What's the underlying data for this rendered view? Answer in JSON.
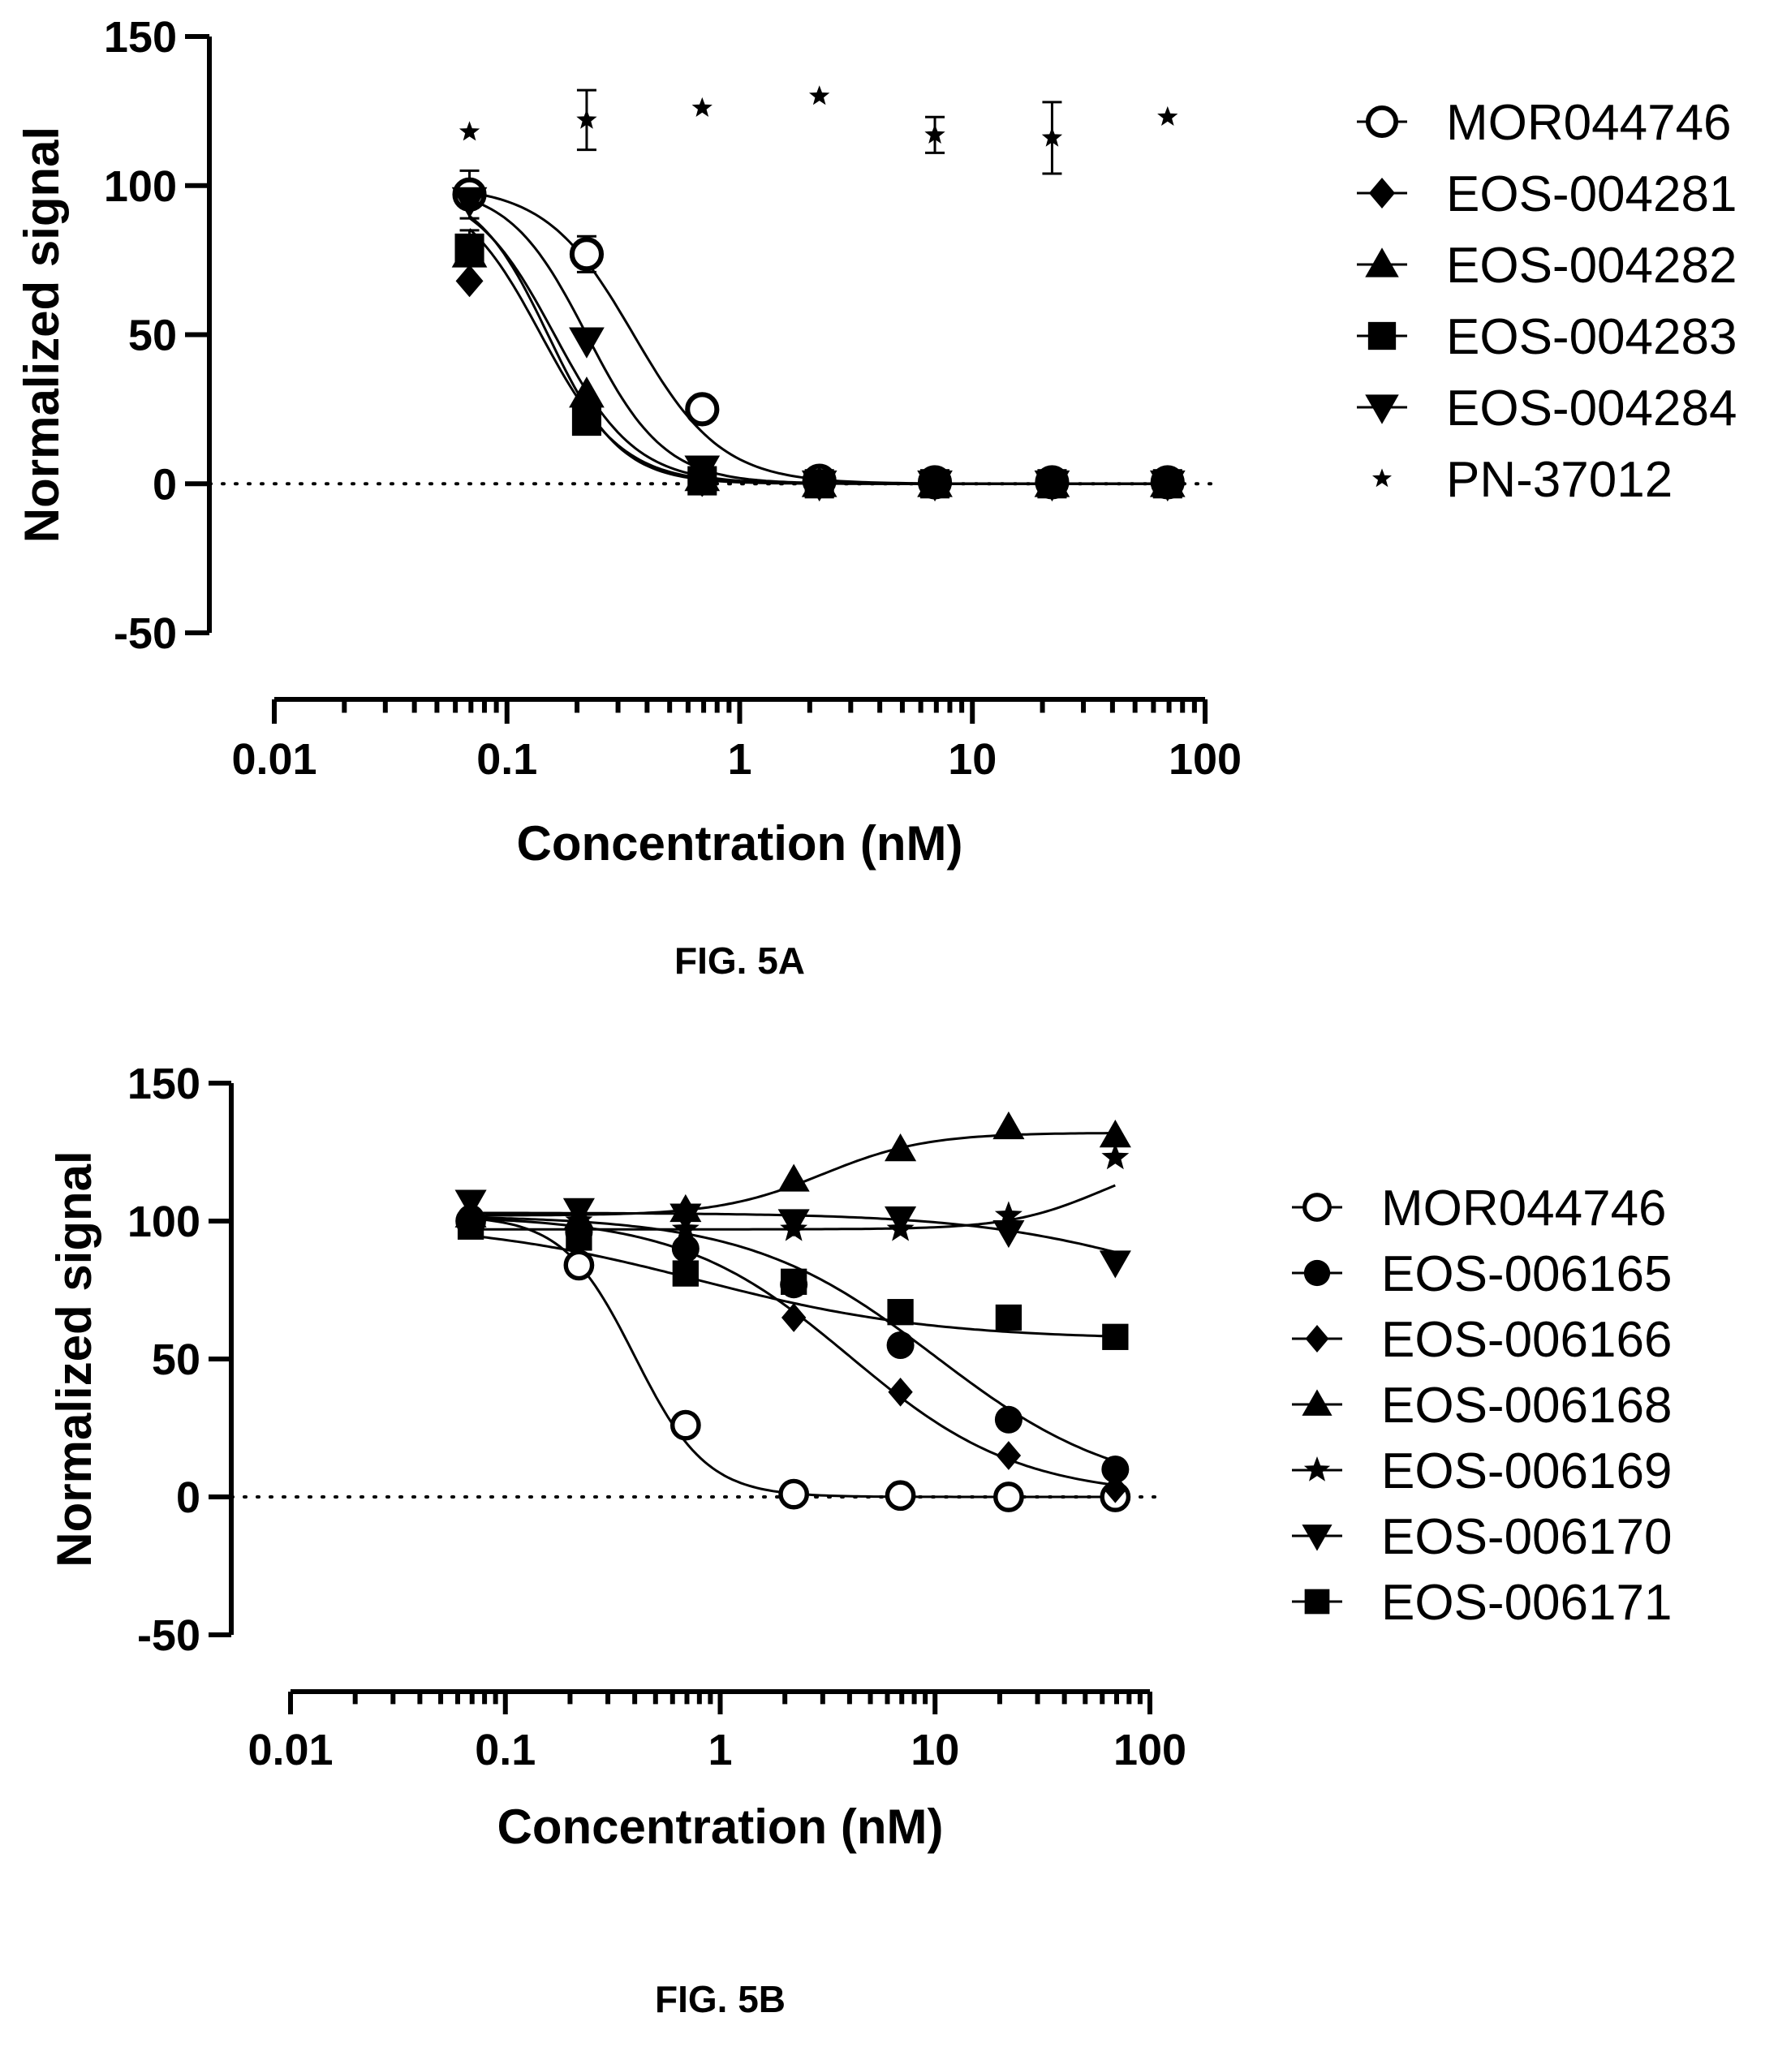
{
  "chart_data": [
    {
      "type": "scatter",
      "caption": "FIG. 5A",
      "xlabel": "Concentration (nM)",
      "ylabel": "Normalized signal",
      "xscale": "log",
      "xlim": [
        0.01,
        100
      ],
      "ylim": [
        -50,
        150
      ],
      "xticks": [
        "0.01",
        "0.1",
        "1",
        "10",
        "100"
      ],
      "yticks": [
        "150",
        "100",
        "50",
        "0",
        "-50"
      ],
      "baseline": 0,
      "grid": false,
      "legend_position": "right",
      "x": [
        0.069,
        0.22,
        0.69,
        2.2,
        6.9,
        22,
        69
      ],
      "series": [
        {
          "name": "MOR044746",
          "marker": "circle-open",
          "values": [
            97,
            77,
            25,
            1,
            0.5,
            0.5,
            0.5
          ],
          "fit": {
            "top": 100,
            "bottom": 0,
            "ic50": 0.35,
            "hill": 2.3
          },
          "error": [
            8,
            6,
            0,
            0,
            0,
            0,
            0
          ]
        },
        {
          "name": "EOS-004281",
          "marker": "diamond",
          "values": [
            68,
            22,
            1,
            0,
            0,
            0,
            0
          ],
          "fit": {
            "top": 100,
            "bottom": 0,
            "ic50": 0.14,
            "hill": 2.5
          },
          "error": [
            0,
            0,
            0,
            0,
            0,
            0,
            0
          ]
        },
        {
          "name": "EOS-004282",
          "marker": "triangle-up",
          "values": [
            77,
            30,
            2,
            0,
            0,
            0,
            0
          ],
          "fit": {
            "top": 100,
            "bottom": 0,
            "ic50": 0.16,
            "hill": 2.5
          },
          "error": [
            0,
            0,
            0,
            0,
            0,
            0,
            0
          ]
        },
        {
          "name": "EOS-004283",
          "marker": "square",
          "values": [
            79,
            21,
            1,
            0,
            0,
            0,
            0
          ],
          "fit": {
            "top": 100,
            "bottom": 0,
            "ic50": 0.15,
            "hill": 2.8
          },
          "error": [
            6,
            0,
            0,
            0,
            0,
            0,
            0
          ]
        },
        {
          "name": "EOS-004284",
          "marker": "triangle-down",
          "values": [
            95,
            48,
            5,
            0,
            0,
            0,
            0
          ],
          "fit": {
            "top": 100,
            "bottom": 0,
            "ic50": 0.22,
            "hill": 2.6
          },
          "error": [
            0,
            0,
            0,
            0,
            0,
            0,
            0
          ]
        },
        {
          "name": "PN-37012",
          "marker": "star-small",
          "values": [
            118,
            122,
            126,
            130,
            117,
            116,
            123
          ],
          "fit": null,
          "error": [
            0,
            10,
            0,
            0,
            6,
            12,
            0
          ]
        }
      ]
    },
    {
      "type": "scatter",
      "caption": "FIG. 5B",
      "xlabel": "Concentration (nM)",
      "ylabel": "Normalized signal",
      "xscale": "log",
      "xlim": [
        0.01,
        100
      ],
      "ylim": [
        -50,
        150
      ],
      "xticks": [
        "0.01",
        "0.1",
        "1",
        "10",
        "100"
      ],
      "yticks": [
        "150",
        "100",
        "50",
        "0",
        "-50"
      ],
      "baseline": 0,
      "grid": false,
      "legend_position": "right",
      "x": [
        0.069,
        0.22,
        0.69,
        2.2,
        6.9,
        22,
        69
      ],
      "series": [
        {
          "name": "MOR044746",
          "marker": "circle-open",
          "values": [
            100,
            84,
            26,
            1,
            0.5,
            0,
            0
          ],
          "fit": {
            "top": 102,
            "bottom": 0,
            "ic50": 0.4,
            "hill": 2.6
          }
        },
        {
          "name": "EOS-006165",
          "marker": "circle",
          "values": [
            101,
            96,
            90,
            77,
            55,
            28,
            10
          ],
          "fit": {
            "top": 102,
            "bottom": 0,
            "ic50": 10,
            "hill": 1.0
          }
        },
        {
          "name": "EOS-006166",
          "marker": "diamond",
          "values": [
            100,
            95,
            88,
            65,
            38,
            15,
            3
          ],
          "fit": {
            "top": 102,
            "bottom": 0,
            "ic50": 4,
            "hill": 1.1
          }
        },
        {
          "name": "EOS-006168",
          "marker": "triangle-up",
          "values": [
            102,
            101,
            104,
            115,
            126,
            134,
            131
          ],
          "fit": {
            "top": 102,
            "bottom": 132,
            "ic50": 3,
            "hill": 1.8
          }
        },
        {
          "name": "EOS-006169",
          "marker": "star",
          "values": [
            101,
            100,
            97,
            97,
            97,
            102,
            123
          ],
          "fit": {
            "top": 97,
            "bottom": 125,
            "ic50": 60,
            "hill": 2
          }
        },
        {
          "name": "EOS-006170",
          "marker": "triangle-down",
          "values": [
            107,
            104,
            102,
            100,
            101,
            96,
            85
          ],
          "fit": {
            "top": 103,
            "bottom": 60,
            "ic50": 150,
            "hill": 0.9
          }
        },
        {
          "name": "EOS-006171",
          "marker": "square",
          "values": [
            98,
            94,
            81,
            78,
            67,
            65,
            58
          ],
          "fit": {
            "top": 100,
            "bottom": 57,
            "ic50": 0.8,
            "hill": 0.8
          }
        }
      ]
    }
  ]
}
